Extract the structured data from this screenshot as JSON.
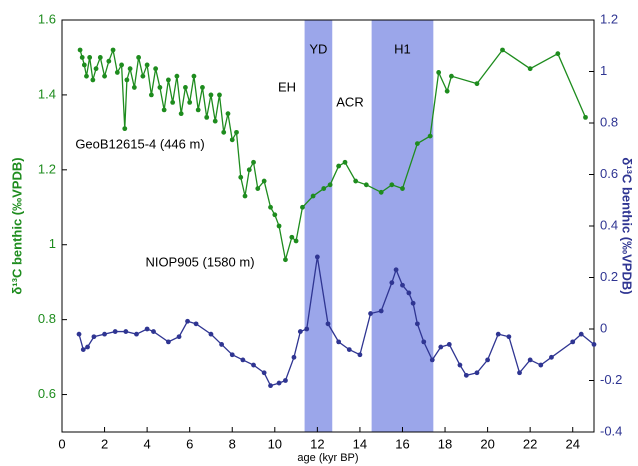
{
  "chart_data": {
    "type": "line",
    "xlabel": "age (kyr BP)",
    "ylabel": "δ¹³C benthic (‰VPDB)",
    "y2label": "δ¹³C benthic (‰VPDB)",
    "xlim": [
      0,
      25
    ],
    "xticks": [
      0,
      2,
      4,
      6,
      8,
      10,
      12,
      14,
      16,
      18,
      20,
      22,
      24
    ],
    "ylim": [
      0.5,
      1.6
    ],
    "yticks": [
      0.6,
      0.8,
      1,
      1.2,
      1.4,
      1.6
    ],
    "y2lim": [
      -0.4,
      1.2
    ],
    "y2ticks": [
      -0.4,
      -0.2,
      0,
      0.2,
      0.4,
      0.6,
      0.8,
      1,
      1.2
    ],
    "shaded_regions": [
      {
        "label": "YD",
        "x": [
          11.4,
          12.7
        ],
        "color": "#9ba6ea"
      },
      {
        "label": "H1",
        "x": [
          14.55,
          17.45
        ],
        "color": "#9ba6ea"
      }
    ],
    "annotations": [
      "EH",
      "ACR"
    ],
    "series": [
      {
        "name": "GeoB12615-4 (446 m)",
        "color": "#1e8c1e",
        "axis": "y",
        "x": [
          0.85,
          0.95,
          1.05,
          1.15,
          1.3,
          1.45,
          1.6,
          1.8,
          2.0,
          2.2,
          2.4,
          2.6,
          2.8,
          2.95,
          3.05,
          3.2,
          3.4,
          3.6,
          3.8,
          4.0,
          4.2,
          4.4,
          4.6,
          4.8,
          5.0,
          5.2,
          5.4,
          5.6,
          5.8,
          6.0,
          6.2,
          6.4,
          6.6,
          6.8,
          7.0,
          7.2,
          7.4,
          7.6,
          7.8,
          8.0,
          8.2,
          8.4,
          8.6,
          8.8,
          9.0,
          9.2,
          9.5,
          9.8,
          10.0,
          10.2,
          10.5,
          10.8,
          11.0,
          11.3,
          11.8,
          12.3,
          12.6,
          13.0,
          13.3,
          13.8,
          14.3,
          15.0,
          15.5,
          16.0,
          16.7,
          17.3,
          17.7,
          18.1,
          18.3,
          19.5,
          20.7,
          22.0,
          23.3,
          24.6
        ],
        "values": [
          1.52,
          1.5,
          1.48,
          1.45,
          1.5,
          1.44,
          1.47,
          1.5,
          1.45,
          1.49,
          1.52,
          1.46,
          1.48,
          1.31,
          1.44,
          1.47,
          1.42,
          1.5,
          1.45,
          1.48,
          1.4,
          1.47,
          1.42,
          1.36,
          1.44,
          1.38,
          1.45,
          1.35,
          1.42,
          1.38,
          1.45,
          1.36,
          1.42,
          1.34,
          1.4,
          1.33,
          1.4,
          1.3,
          1.35,
          1.28,
          1.3,
          1.18,
          1.13,
          1.2,
          1.22,
          1.15,
          1.17,
          1.1,
          1.08,
          1.05,
          0.96,
          1.02,
          1.01,
          1.1,
          1.13,
          1.15,
          1.16,
          1.21,
          1.22,
          1.17,
          1.16,
          1.14,
          1.16,
          1.15,
          1.27,
          1.29,
          1.46,
          1.41,
          1.45,
          1.43,
          1.52,
          1.47,
          1.51,
          1.34
        ]
      },
      {
        "name": "NIOP905 (1580 m)",
        "color": "#2f3592",
        "axis": "y2",
        "x": [
          0.8,
          1.0,
          1.2,
          1.5,
          2.0,
          2.5,
          3.0,
          3.5,
          4.0,
          4.3,
          5.0,
          5.5,
          5.9,
          6.3,
          7.0,
          7.5,
          8.0,
          8.5,
          9.0,
          9.5,
          9.8,
          10.2,
          10.5,
          10.9,
          11.2,
          11.5,
          12.0,
          12.5,
          13.0,
          13.5,
          14.0,
          14.5,
          15.0,
          15.5,
          15.7,
          16.0,
          16.3,
          16.5,
          16.7,
          17.0,
          17.4,
          17.8,
          18.2,
          18.7,
          19.0,
          19.5,
          20.0,
          20.5,
          21.0,
          21.5,
          22.0,
          22.5,
          23.0,
          24.0,
          24.4,
          25.0
        ],
        "values": [
          -0.02,
          -0.08,
          -0.07,
          -0.03,
          -0.02,
          -0.01,
          -0.01,
          -0.02,
          0.0,
          -0.01,
          -0.05,
          -0.03,
          0.03,
          0.02,
          -0.02,
          -0.06,
          -0.1,
          -0.12,
          -0.14,
          -0.17,
          -0.22,
          -0.21,
          -0.2,
          -0.11,
          -0.01,
          0.0,
          0.28,
          0.02,
          -0.05,
          -0.08,
          -0.1,
          0.06,
          0.07,
          0.18,
          0.23,
          0.17,
          0.14,
          0.1,
          0.02,
          -0.05,
          -0.12,
          -0.07,
          -0.06,
          -0.14,
          -0.18,
          -0.17,
          -0.12,
          -0.02,
          -0.03,
          -0.17,
          -0.12,
          -0.14,
          -0.11,
          -0.05,
          -0.02,
          -0.06
        ]
      }
    ]
  }
}
